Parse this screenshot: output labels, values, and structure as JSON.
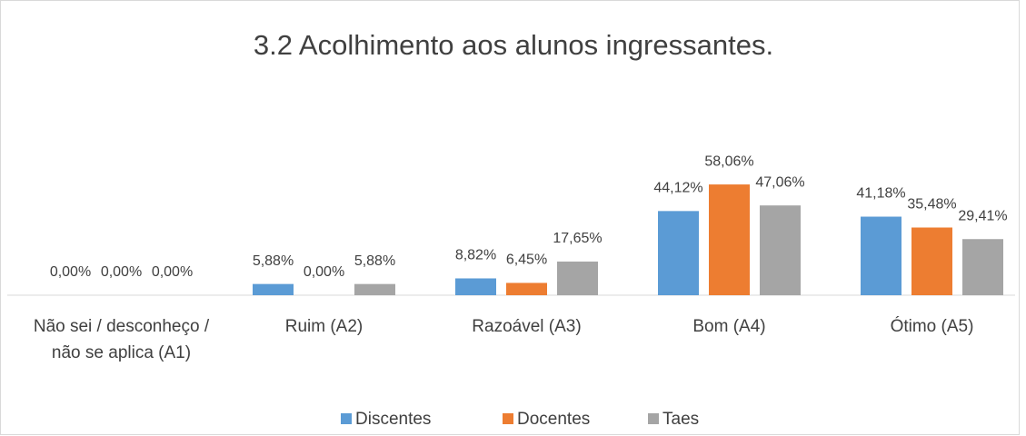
{
  "chart_data": {
    "type": "bar",
    "title": "3.2 Acolhimento aos alunos ingressantes.",
    "categories": [
      "Não sei / desconheço / não se aplica (A1)",
      "Ruim (A2)",
      "Razoável (A3)",
      "Bom (A4)",
      "Ótimo (A5)"
    ],
    "series": [
      {
        "name": "Discentes",
        "color": "#5b9bd5",
        "values": [
          0,
          5.88,
          8.82,
          44.12,
          41.18
        ],
        "value_labels": [
          "0,00%",
          "5,88%",
          "8,82%",
          "44,12%",
          "41,18%"
        ]
      },
      {
        "name": "Docentes",
        "color": "#ed7d31",
        "values": [
          0,
          0,
          6.45,
          58.06,
          35.48
        ],
        "value_labels": [
          "0,00%",
          "0,00%",
          "6,45%",
          "58,06%",
          "35,48%"
        ]
      },
      {
        "name": "Taes",
        "color": "#a5a5a5",
        "values": [
          0,
          5.88,
          17.65,
          47.06,
          29.41
        ],
        "value_labels": [
          "0,00%",
          "5,88%",
          "17,65%",
          "47,06%",
          "29,41%"
        ]
      }
    ],
    "legend": "bottom"
  }
}
